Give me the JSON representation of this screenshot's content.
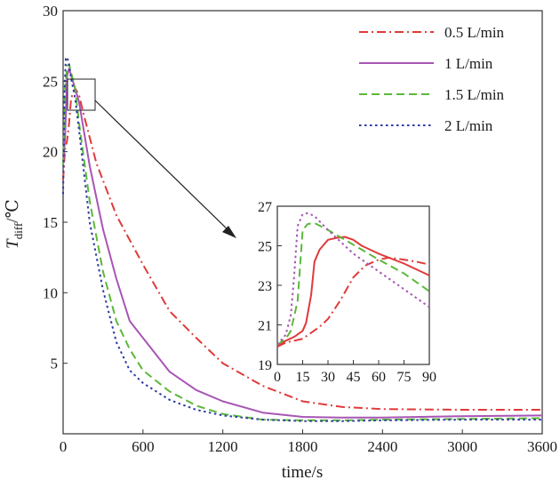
{
  "chart_data": [
    {
      "type": "line",
      "title": "",
      "xlabel": "time/s",
      "ylabel": {
        "symbol": "T",
        "subscript": "diff",
        "unit": "/℃"
      },
      "xlim": [
        0,
        3600
      ],
      "ylim": [
        0,
        30
      ],
      "xticks": [
        0,
        600,
        1200,
        1800,
        2400,
        3000,
        3600
      ],
      "yticks": [
        5,
        10,
        15,
        20,
        25,
        30
      ],
      "x_tick_labels": [
        "0",
        "600",
        "1200",
        "1800",
        "2400",
        "3000",
        "3600"
      ],
      "y_tick_labels": [
        "5",
        "10",
        "15",
        "20",
        "25",
        "30"
      ],
      "grid": false,
      "legend_position": "top-right",
      "series": [
        {
          "name": "0.5 L/min",
          "color": "#e03a3a",
          "dash": "dashdot",
          "points": [
            [
              0,
              18
            ],
            [
              15,
              20.2
            ],
            [
              30,
              20.8
            ],
            [
              45,
              22
            ],
            [
              60,
              23.8
            ],
            [
              90,
              24.5
            ],
            [
              120,
              24
            ],
            [
              150,
              22.8
            ],
            [
              250,
              19.2
            ],
            [
              400,
              15.5
            ],
            [
              600,
              12
            ],
            [
              800,
              8.7
            ],
            [
              1000,
              6.8
            ],
            [
              1200,
              5
            ],
            [
              1500,
              3.4
            ],
            [
              1800,
              2.3
            ],
            [
              2100,
              1.9
            ],
            [
              2400,
              1.75
            ],
            [
              3000,
              1.7
            ],
            [
              3600,
              1.7
            ]
          ]
        },
        {
          "name": "1 L/min",
          "color": "#a855b5",
          "dash": "solid",
          "points": [
            [
              0,
              19
            ],
            [
              15,
              21
            ],
            [
              30,
              25.4
            ],
            [
              45,
              25.9
            ],
            [
              60,
              25.4
            ],
            [
              90,
              24.5
            ],
            [
              120,
              23.5
            ],
            [
              200,
              19
            ],
            [
              300,
              14.5
            ],
            [
              400,
              11
            ],
            [
              500,
              8
            ],
            [
              600,
              6.8
            ],
            [
              800,
              4.4
            ],
            [
              1000,
              3.1
            ],
            [
              1200,
              2.3
            ],
            [
              1500,
              1.5
            ],
            [
              1800,
              1.2
            ],
            [
              2100,
              1.15
            ],
            [
              2400,
              1.15
            ],
            [
              3000,
              1.25
            ],
            [
              3600,
              1.3
            ]
          ]
        },
        {
          "name": "1.5 L/min",
          "color": "#5cb83a",
          "dash": "dashed",
          "points": [
            [
              0,
              19
            ],
            [
              15,
              24.5
            ],
            [
              30,
              26.1
            ],
            [
              45,
              26.2
            ],
            [
              60,
              25.6
            ],
            [
              90,
              24.5
            ],
            [
              120,
              22
            ],
            [
              200,
              16.5
            ],
            [
              300,
              11.5
            ],
            [
              400,
              8
            ],
            [
              500,
              6
            ],
            [
              600,
              4.5
            ],
            [
              800,
              3
            ],
            [
              1000,
              2
            ],
            [
              1200,
              1.4
            ],
            [
              1500,
              1
            ],
            [
              1800,
              0.95
            ],
            [
              2100,
              0.95
            ],
            [
              2400,
              1.0
            ],
            [
              3000,
              1.05
            ],
            [
              3600,
              1.1
            ]
          ]
        },
        {
          "name": "2 L/min",
          "color": "#2d3aa0",
          "dash": "dotted",
          "points": [
            [
              0,
              17
            ],
            [
              10,
              24
            ],
            [
              20,
              26.6
            ],
            [
              30,
              26.7
            ],
            [
              45,
              26.2
            ],
            [
              60,
              25.2
            ],
            [
              90,
              23.8
            ],
            [
              120,
              21.5
            ],
            [
              200,
              15
            ],
            [
              300,
              10.2
            ],
            [
              400,
              6.5
            ],
            [
              500,
              4.5
            ],
            [
              600,
              3.6
            ],
            [
              800,
              2.4
            ],
            [
              1000,
              1.7
            ],
            [
              1200,
              1.3
            ],
            [
              1500,
              1.0
            ],
            [
              1800,
              0.9
            ],
            [
              2100,
              0.9
            ],
            [
              2400,
              0.95
            ],
            [
              3000,
              1.0
            ],
            [
              3600,
              1.0
            ]
          ]
        }
      ]
    },
    {
      "type": "line",
      "title": "",
      "xlabel": "",
      "ylabel": "",
      "xlim": [
        0,
        90
      ],
      "ylim": [
        19,
        27
      ],
      "xticks": [
        0,
        15,
        30,
        45,
        60,
        75,
        90
      ],
      "yticks": [
        19,
        21,
        23,
        25,
        27
      ],
      "x_tick_labels": [
        "0",
        "15",
        "30",
        "45",
        "60",
        "75",
        "90"
      ],
      "y_tick_labels": [
        "19",
        "21",
        "23",
        "25",
        "27"
      ],
      "grid": false,
      "series": [
        {
          "name": "0.5 L/min",
          "color": "#e03a3a",
          "dash": "dashdot",
          "points": [
            [
              0,
              19.9
            ],
            [
              5,
              20.1
            ],
            [
              10,
              20.2
            ],
            [
              15,
              20.3
            ],
            [
              20,
              20.6
            ],
            [
              25,
              20.9
            ],
            [
              30,
              21.3
            ],
            [
              37,
              22.2
            ],
            [
              45,
              23.4
            ],
            [
              52,
              24
            ],
            [
              60,
              24.3
            ],
            [
              66,
              24.4
            ],
            [
              75,
              24.3
            ],
            [
              82,
              24.2
            ],
            [
              90,
              24.05
            ]
          ]
        },
        {
          "name": "1 L/min",
          "color": "#e03a3a",
          "dash": "solid",
          "points": [
            [
              0,
              19.9
            ],
            [
              5,
              20.2
            ],
            [
              10,
              20.4
            ],
            [
              15,
              20.7
            ],
            [
              17,
              21.1
            ],
            [
              20,
              22.5
            ],
            [
              22,
              24.2
            ],
            [
              25,
              24.8
            ],
            [
              30,
              25.3
            ],
            [
              35,
              25.4
            ],
            [
              40,
              25.45
            ],
            [
              45,
              25.3
            ],
            [
              50,
              25
            ],
            [
              60,
              24.6
            ],
            [
              75,
              24.1
            ],
            [
              90,
              23.5
            ]
          ]
        },
        {
          "name": "1.5 L/min",
          "color": "#5cb83a",
          "dash": "dashed",
          "points": [
            [
              0,
              20
            ],
            [
              5,
              20.3
            ],
            [
              8,
              20.7
            ],
            [
              12,
              22.2
            ],
            [
              15,
              25.8
            ],
            [
              18,
              26.1
            ],
            [
              22,
              26.15
            ],
            [
              30,
              25.8
            ],
            [
              40,
              25.3
            ],
            [
              50,
              24.8
            ],
            [
              60,
              24.3
            ],
            [
              75,
              23.6
            ],
            [
              90,
              22.7
            ]
          ]
        },
        {
          "name": "2 L/min",
          "color": "#a855b5",
          "dash": "dotted",
          "points": [
            [
              0,
              20
            ],
            [
              5,
              20.5
            ],
            [
              8,
              21.5
            ],
            [
              10,
              23.5
            ],
            [
              12,
              26
            ],
            [
              15,
              26.6
            ],
            [
              18,
              26.65
            ],
            [
              22,
              26.5
            ],
            [
              30,
              25.8
            ],
            [
              45,
              24.6
            ],
            [
              60,
              23.7
            ],
            [
              75,
              22.8
            ],
            [
              90,
              21.9
            ]
          ]
        }
      ]
    }
  ]
}
